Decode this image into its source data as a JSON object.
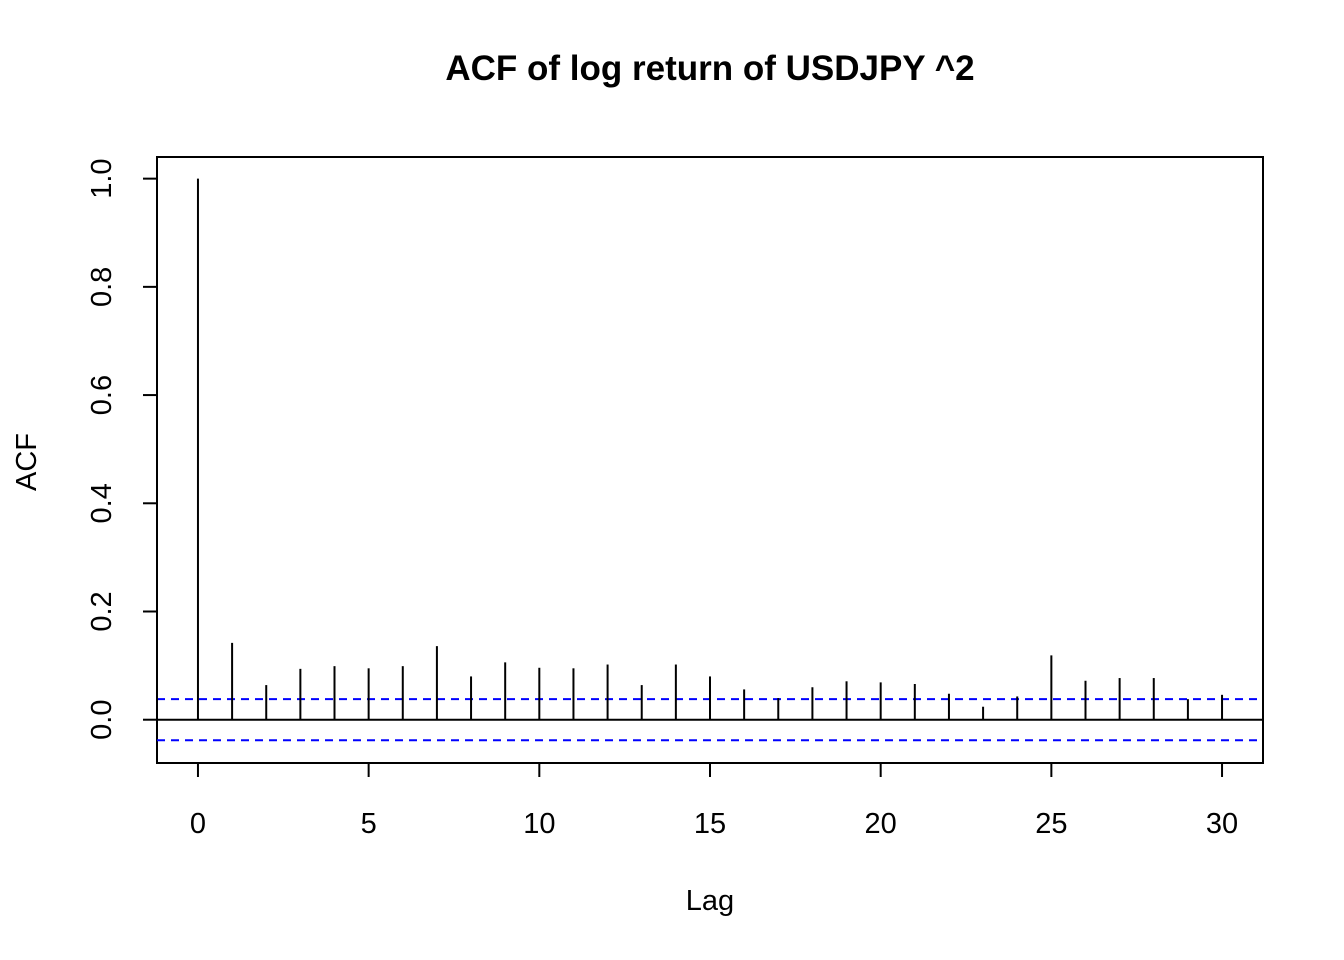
{
  "chart_data": {
    "type": "bar",
    "title": "ACF of log return of USDJPY ^2",
    "xlabel": "Lag",
    "ylabel": "ACF",
    "xlim": [
      -1.2,
      31.2
    ],
    "ylim": [
      -0.08,
      1.04
    ],
    "x_ticks": [
      0,
      5,
      10,
      15,
      20,
      25,
      30
    ],
    "y_ticks": [
      0.0,
      0.2,
      0.4,
      0.6,
      0.8,
      1.0
    ],
    "x_tick_labels": [
      "0",
      "5",
      "10",
      "15",
      "20",
      "25",
      "30"
    ],
    "y_tick_labels": [
      "0.0",
      "0.2",
      "0.4",
      "0.6",
      "0.8",
      "1.0"
    ],
    "lags": [
      0,
      1,
      2,
      3,
      4,
      5,
      6,
      7,
      8,
      9,
      10,
      11,
      12,
      13,
      14,
      15,
      16,
      17,
      18,
      19,
      20,
      21,
      22,
      23,
      24,
      25,
      26,
      27,
      28,
      29,
      30
    ],
    "values": [
      1.0,
      0.142,
      0.064,
      0.094,
      0.099,
      0.095,
      0.099,
      0.136,
      0.08,
      0.106,
      0.096,
      0.095,
      0.102,
      0.064,
      0.102,
      0.08,
      0.056,
      0.04,
      0.06,
      0.071,
      0.069,
      0.066,
      0.048,
      0.024,
      0.043,
      0.119,
      0.072,
      0.077,
      0.077,
      0.038,
      0.046
    ],
    "confidence_bound": 0.038,
    "grid": false,
    "colors": {
      "spikes": "#000000",
      "confidence": "#0000ff",
      "zero_line": "#000000"
    }
  }
}
